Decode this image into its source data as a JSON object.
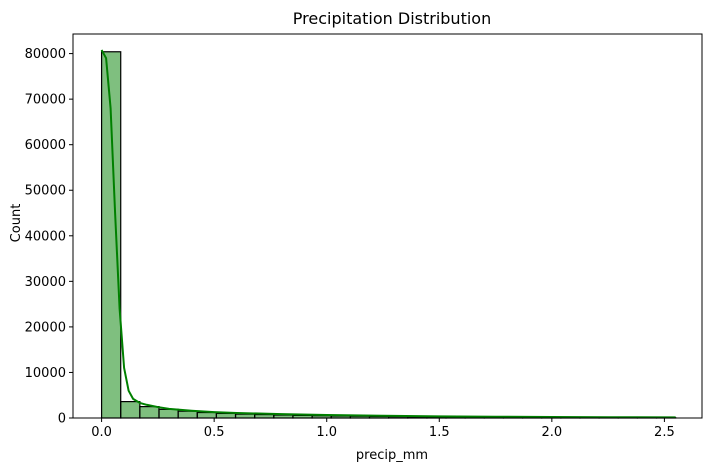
{
  "chart_data": {
    "type": "bar",
    "title": "Precipitation Distribution",
    "xlabel": "precip_mm",
    "ylabel": "Count",
    "xlim": [
      -0.127,
      2.667
    ],
    "ylim": [
      0,
      84300
    ],
    "grid": false,
    "legend": "none",
    "bin_width": 0.085,
    "bins": [
      {
        "x0": 0.0,
        "x1": 0.085,
        "count": 80400
      },
      {
        "x0": 0.085,
        "x1": 0.17,
        "count": 3600
      },
      {
        "x0": 0.17,
        "x1": 0.255,
        "count": 2500
      },
      {
        "x0": 0.255,
        "x1": 0.34,
        "count": 1900
      },
      {
        "x0": 0.34,
        "x1": 0.425,
        "count": 1500
      },
      {
        "x0": 0.425,
        "x1": 0.51,
        "count": 1200
      },
      {
        "x0": 0.51,
        "x1": 0.595,
        "count": 1000
      },
      {
        "x0": 0.595,
        "x1": 0.68,
        "count": 850
      },
      {
        "x0": 0.68,
        "x1": 0.765,
        "count": 750
      },
      {
        "x0": 0.765,
        "x1": 0.85,
        "count": 650
      },
      {
        "x0": 0.85,
        "x1": 0.935,
        "count": 570
      },
      {
        "x0": 0.935,
        "x1": 1.02,
        "count": 500
      },
      {
        "x0": 1.02,
        "x1": 1.105,
        "count": 440
      },
      {
        "x0": 1.105,
        "x1": 1.19,
        "count": 390
      },
      {
        "x0": 1.19,
        "x1": 1.275,
        "count": 340
      },
      {
        "x0": 1.275,
        "x1": 1.36,
        "count": 300
      },
      {
        "x0": 1.36,
        "x1": 1.445,
        "count": 270
      },
      {
        "x0": 1.445,
        "x1": 1.53,
        "count": 240
      },
      {
        "x0": 1.53,
        "x1": 1.615,
        "count": 210
      },
      {
        "x0": 1.615,
        "x1": 1.7,
        "count": 190
      },
      {
        "x0": 1.7,
        "x1": 1.785,
        "count": 170
      },
      {
        "x0": 1.785,
        "x1": 1.87,
        "count": 150
      },
      {
        "x0": 1.87,
        "x1": 1.955,
        "count": 135
      },
      {
        "x0": 1.955,
        "x1": 2.04,
        "count": 120
      },
      {
        "x0": 2.04,
        "x1": 2.125,
        "count": 110
      },
      {
        "x0": 2.125,
        "x1": 2.21,
        "count": 100
      },
      {
        "x0": 2.21,
        "x1": 2.295,
        "count": 90
      },
      {
        "x0": 2.295,
        "x1": 2.38,
        "count": 80
      },
      {
        "x0": 2.38,
        "x1": 2.465,
        "count": 75
      },
      {
        "x0": 2.465,
        "x1": 2.55,
        "count": 70
      }
    ],
    "kde": {
      "x": [
        0.0,
        0.02,
        0.04,
        0.06,
        0.08,
        0.1,
        0.12,
        0.14,
        0.17,
        0.2,
        0.25,
        0.3,
        0.4,
        0.5,
        0.6,
        0.8,
        1.0,
        1.25,
        1.5,
        1.75,
        2.0,
        2.25,
        2.55
      ],
      "y": [
        80800,
        79000,
        68000,
        45000,
        24000,
        11000,
        6000,
        4200,
        3300,
        2900,
        2400,
        2000,
        1600,
        1300,
        1100,
        850,
        650,
        480,
        360,
        280,
        220,
        170,
        130
      ]
    },
    "xticks": [
      0.0,
      0.5,
      1.0,
      1.5,
      2.0,
      2.5
    ],
    "xtick_labels": [
      "0.0",
      "0.5",
      "1.0",
      "1.5",
      "2.0",
      "2.5"
    ],
    "yticks": [
      0,
      10000,
      20000,
      30000,
      40000,
      50000,
      60000,
      70000,
      80000
    ],
    "ytick_labels": [
      "0",
      "10000",
      "20000",
      "30000",
      "40000",
      "50000",
      "60000",
      "70000",
      "80000"
    ],
    "colors": {
      "bar_fill": "#008000",
      "bar_fill_opacity": 0.5,
      "bar_edge": "#000000",
      "kde_line": "#008000",
      "axes": "#000000",
      "background": "#ffffff"
    }
  }
}
